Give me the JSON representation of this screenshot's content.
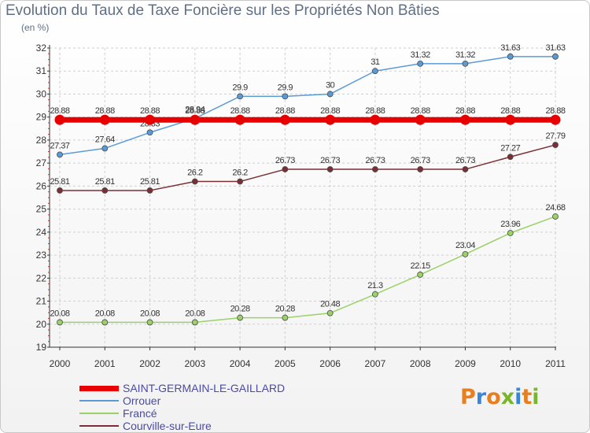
{
  "chart_data": {
    "type": "line",
    "title": "Evolution du Taux de Taxe Foncière sur les Propriétés Non Bâties",
    "subtitle": "(en %)",
    "x": [
      "2000",
      "2001",
      "2002",
      "2003",
      "2004",
      "2005",
      "2006",
      "2007",
      "2008",
      "2009",
      "2010",
      "2011"
    ],
    "yticks": [
      "19",
      "20",
      "21",
      "22",
      "23",
      "24",
      "25",
      "26",
      "27",
      "28",
      "29",
      "30",
      "31",
      "32"
    ],
    "ylim": [
      19,
      32
    ],
    "grid": true,
    "series": [
      {
        "name": "Orrouer",
        "color": "#5b9bd5",
        "width": 1.5,
        "marker": 3.5,
        "values": [
          27.37,
          27.64,
          28.33,
          28.94,
          29.9,
          29.9,
          30,
          31,
          31.32,
          31.32,
          31.63,
          31.63
        ],
        "labels": [
          "27.37",
          "27.64",
          "28.33",
          "28.94",
          "29.9",
          "29.9",
          "30",
          "31",
          "31.32",
          "31.32",
          "31.63",
          "31.63"
        ]
      },
      {
        "name": "Francé",
        "color": "#9ad267",
        "width": 1.5,
        "marker": 3.5,
        "values": [
          20.08,
          20.08,
          20.08,
          20.08,
          20.28,
          20.28,
          20.48,
          21.3,
          22.15,
          23.04,
          23.96,
          24.68
        ],
        "labels": [
          "20.08",
          "20.08",
          "20.08",
          "20.08",
          "20.28",
          "20.28",
          "20.48",
          "21.3",
          "22.15",
          "23.04",
          "23.96",
          "24.68"
        ]
      },
      {
        "name": "Courville-sur-Eure",
        "color": "#7a2f35",
        "width": 1.5,
        "marker": 3.5,
        "values": [
          25.81,
          25.81,
          25.81,
          26.2,
          26.2,
          26.73,
          26.73,
          26.73,
          26.73,
          26.73,
          27.27,
          27.79
        ],
        "labels": [
          "25.81",
          "25.81",
          "25.81",
          "26.2",
          "26.2",
          "26.73",
          "26.73",
          "26.73",
          "26.73",
          "26.73",
          "27.27",
          "27.79"
        ]
      },
      {
        "name": "SAINT-GERMAIN-LE-GAILLARD",
        "color": "#e80000",
        "width": 7,
        "marker": 6.5,
        "values": [
          28.88,
          28.88,
          28.88,
          28.88,
          28.88,
          28.88,
          28.88,
          28.88,
          28.88,
          28.88,
          28.88,
          28.88
        ],
        "labels": [
          "28.88",
          "28.88",
          "28.88",
          "28.88",
          "28.88",
          "28.88",
          "28.88",
          "28.88",
          "28.88",
          "28.88",
          "28.88",
          "28.88"
        ]
      }
    ],
    "legend": [
      "SAINT-GERMAIN-LE-GAILLARD",
      "Orrouer",
      "Francé",
      "Courville-sur-Eure"
    ]
  },
  "logo": {
    "text": "Proxiti",
    "letter_colors": [
      "#e67e22",
      "#3a86d6",
      "#e67e22",
      "#7ab62d",
      "#3a86d6",
      "#e67e22",
      "#7ab62d"
    ]
  }
}
